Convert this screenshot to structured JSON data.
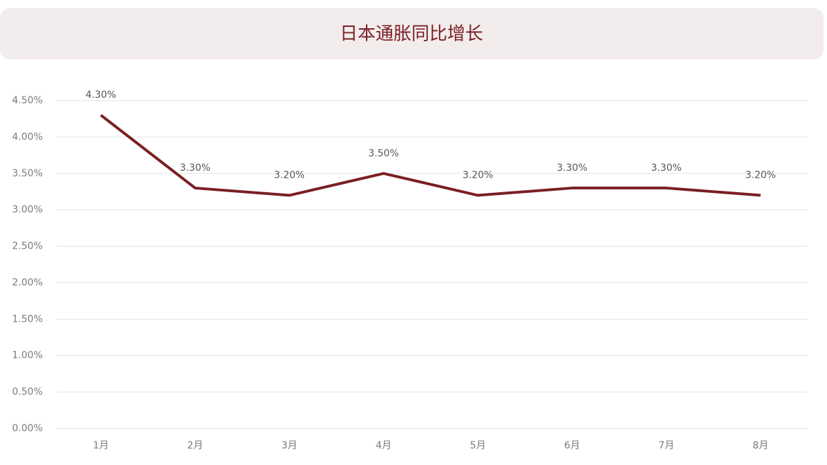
{
  "chart_data": {
    "type": "line",
    "title": "日本通胀同比增长",
    "categories": [
      "1月",
      "2月",
      "3月",
      "4月",
      "5月",
      "6月",
      "7月",
      "8月"
    ],
    "series": [
      {
        "name": "日本通胀同比增长",
        "color": "#7a1f24",
        "values": [
          4.3,
          3.3,
          3.2,
          3.5,
          3.2,
          3.3,
          3.3,
          3.2
        ],
        "value_labels": [
          "4.30%",
          "3.30%",
          "3.20%",
          "3.50%",
          "3.20%",
          "3.30%",
          "3.30%",
          "3.20%"
        ]
      }
    ],
    "ylim": [
      0,
      4.5
    ],
    "yticks": [
      {
        "value": 0,
        "label": "0.00%"
      },
      {
        "value": 0.5,
        "label": "0.50%"
      },
      {
        "value": 1,
        "label": "1.00%"
      },
      {
        "value": 1.5,
        "label": "1.50%"
      },
      {
        "value": 2,
        "label": "2.00%"
      },
      {
        "value": 2.5,
        "label": "2.50%"
      },
      {
        "value": 3,
        "label": "3.00%"
      },
      {
        "value": 3.5,
        "label": "3.50%"
      },
      {
        "value": 4,
        "label": "4.00%"
      },
      {
        "value": 4.5,
        "label": "4.50%"
      }
    ],
    "grid": true
  }
}
